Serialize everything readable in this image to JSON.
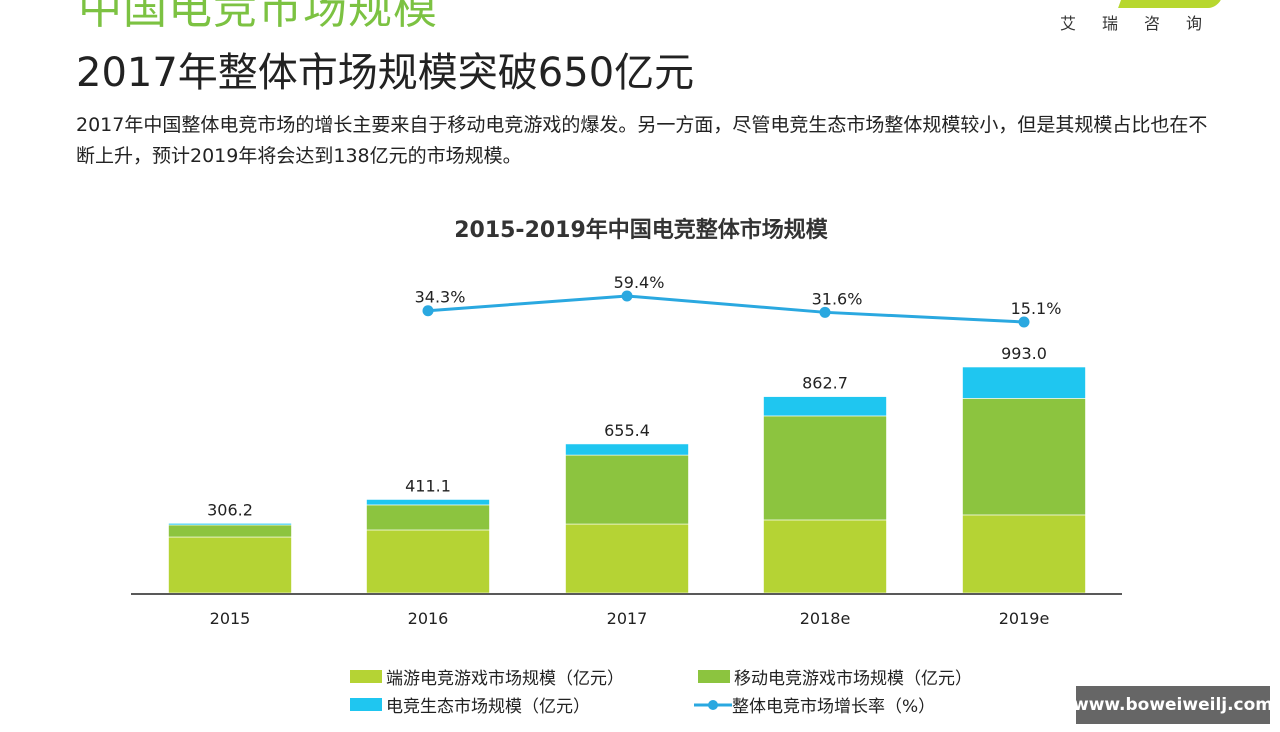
{
  "header": {
    "section_title": "中国电竞市场规模",
    "logo_text": "艾瑞咨询",
    "headline": "2017年整体市场规模突破650亿元",
    "body": "2017年中国整体电竞市场的增长主要来自于移动电竞游戏的爆发。另一方面，尽管电竞生态市场整体规模较小，但是其规模占比也在不断上升，预计2019年将会达到138亿元的市场规模。"
  },
  "chart_data": {
    "type": "bar",
    "stacked": true,
    "title": "2015-2019年中国电竞整体市场规模",
    "categories": [
      "2015",
      "2016",
      "2017",
      "2018e",
      "2019e"
    ],
    "totals": [
      "306.2",
      "411.1",
      "655.4",
      "862.7",
      "993.0"
    ],
    "series": [
      {
        "name": "端游电竞游戏市场规模（亿元）",
        "color": "#b5d334",
        "values": [
          246,
          277,
          303,
          321,
          343
        ]
      },
      {
        "name": "移动电竞游戏市场规模（亿元）",
        "color": "#8cc43f",
        "values": [
          53,
          110,
          303,
          457,
          512
        ]
      },
      {
        "name": "电竞生态市场规模（亿元）",
        "color": "#1fc6f0",
        "values": [
          7,
          24,
          49,
          85,
          138
        ]
      }
    ],
    "line": {
      "name": "整体电竞市场增长率（%）",
      "color": "#2aa8e0",
      "values": [
        null,
        34.3,
        59.4,
        31.6,
        15.1
      ],
      "labels": [
        "",
        "34.3%",
        "59.4%",
        "31.6%",
        "15.1%"
      ]
    },
    "ylim": [
      0,
      1000
    ],
    "grid": false,
    "legend_position": "bottom"
  },
  "watermark": "www.boweiweilj.com"
}
